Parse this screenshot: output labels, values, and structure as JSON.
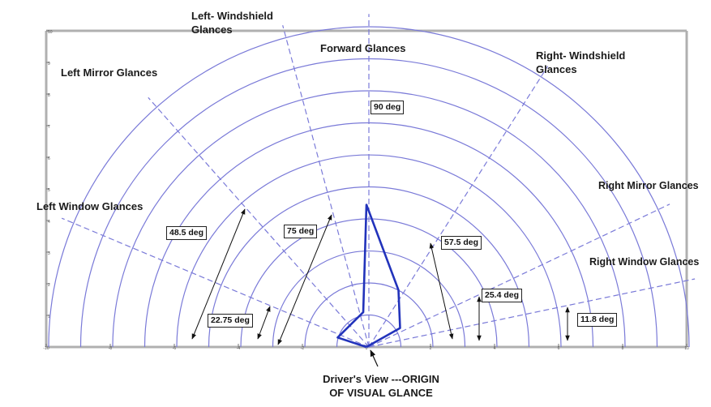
{
  "labels": {
    "left_windshield_line1": "Left- Windshield",
    "left_windshield_line2": "Glances",
    "forward": "Forward Glances",
    "right_windshield_line1": "Right- Windshield",
    "right_windshield_line2": "Glances",
    "left_mirror": "Left Mirror Glances",
    "right_mirror": "Right Mirror Glances",
    "left_window": "Left Window Glances",
    "right_window": "Right Window Glances"
  },
  "angles": {
    "a90": "90 deg",
    "a75": "75 deg",
    "a57_5": "57.5 deg",
    "a48_5": "48.5 deg",
    "a25_4": "25.4 deg",
    "a22_75": "22.75 deg",
    "a11_8": "11.8 deg"
  },
  "origin_caption": {
    "line1": "Driver's View ---ORIGIN",
    "line2": "OF VISUAL GLANCE"
  },
  "chart_data": {
    "type": "line",
    "xlim": [
      -10,
      10
    ],
    "ylim": [
      0,
      10
    ],
    "y_ticks": [
      "1",
      "2",
      "3",
      "4",
      "5",
      "6",
      "7",
      "8",
      "9",
      "10"
    ],
    "x_ticks": [
      "-10",
      "-8",
      "-6",
      "-4",
      "-2",
      "0",
      "2",
      "4",
      "6",
      "8",
      "10"
    ],
    "semicircle_radii": [
      1,
      2,
      3,
      4,
      5,
      6,
      7,
      8,
      9,
      10
    ],
    "glance_region_boundaries_deg": [
      11.8,
      25.4,
      57.5,
      90,
      105,
      131.5,
      157.25
    ],
    "series": [
      {
        "values_xy": [
          [
            0,
            0
          ],
          [
            -0.9,
            0.3
          ],
          [
            -0.1,
            1.1
          ],
          [
            0,
            4.5
          ],
          [
            1,
            1.8
          ],
          [
            1.05,
            0.6
          ],
          [
            0,
            0
          ]
        ]
      }
    ],
    "colors": {
      "grid": "#7a7ad8",
      "series": "#2233bb",
      "axis": "#b0b0b0"
    }
  }
}
